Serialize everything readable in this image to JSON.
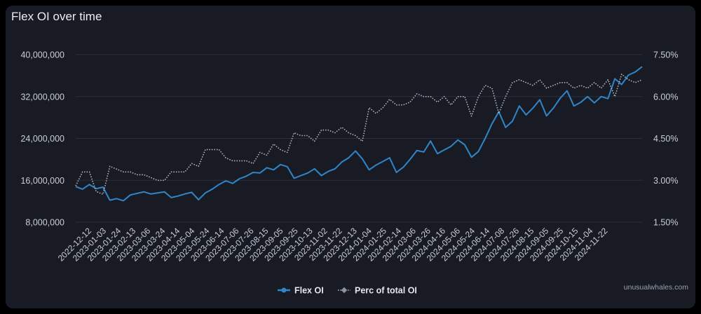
{
  "page": {
    "title": "Flex OI over time",
    "watermark": "unusualwhales.com"
  },
  "colors": {
    "flex": "#2f86c8",
    "perc": "#b3b8c6",
    "grid": "#2b2f3a",
    "background": "#181b24"
  },
  "chart_data": {
    "type": "line",
    "title": "Flex OI over time",
    "y_left": {
      "ylim": [
        8000000,
        40000000
      ],
      "ticks": [
        8000000,
        16000000,
        24000000,
        32000000,
        40000000
      ],
      "tick_labels": [
        "8,000,000",
        "16,000,000",
        "24,000,000",
        "32,000,000",
        "40,000,000"
      ]
    },
    "y_right": {
      "ylim": [
        1.5,
        7.5
      ],
      "ticks": [
        1.5,
        3.0,
        4.5,
        6.0,
        7.5
      ],
      "tick_labels": [
        "1.50%",
        "3.00%",
        "4.50%",
        "6.00%",
        "7.50%"
      ]
    },
    "x_tick_labels": [
      "2022-12-12",
      "2023-01-03",
      "2023-01-24",
      "2023-02-13",
      "2023-03-06",
      "2023-03-24",
      "2023-04-14",
      "2023-05-04",
      "2023-05-24",
      "2023-06-14",
      "2023-07-06",
      "2023-07-26",
      "2023-08-15",
      "2023-09-05",
      "2023-09-25",
      "2023-10-13",
      "2023-11-02",
      "2023-11-22",
      "2023-12-13",
      "2024-01-04",
      "2024-01-25",
      "2024-02-14",
      "2024-03-06",
      "2024-03-26",
      "2024-04-16",
      "2024-05-06",
      "2024-05-24",
      "2024-06-14",
      "2024-07-08",
      "2024-07-26",
      "2024-08-15",
      "2024-09-05",
      "2024-09-25",
      "2024-10-15",
      "2024-11-04",
      "2024-11-22"
    ],
    "legend_position": "bottom-center",
    "series": [
      {
        "name": "Flex OI",
        "axis": "left",
        "style": "solid",
        "values": [
          14800000,
          14300000,
          15200000,
          14400000,
          14700000,
          12200000,
          12500000,
          12100000,
          13200000,
          13500000,
          13800000,
          13400000,
          13600000,
          13800000,
          12700000,
          13000000,
          13400000,
          13700000,
          12300000,
          13600000,
          14300000,
          15200000,
          15900000,
          15400000,
          16300000,
          16800000,
          17500000,
          17400000,
          18400000,
          18000000,
          19000000,
          18600000,
          16400000,
          16900000,
          17400000,
          18200000,
          16900000,
          17700000,
          18200000,
          19500000,
          20300000,
          21600000,
          20100000,
          18000000,
          18900000,
          19600000,
          20300000,
          17500000,
          18500000,
          20000000,
          21700000,
          21400000,
          23500000,
          21100000,
          21800000,
          22500000,
          23700000,
          22800000,
          20400000,
          21500000,
          24000000,
          26800000,
          29100000,
          26100000,
          27300000,
          30200000,
          28500000,
          29800000,
          31400000,
          28300000,
          29800000,
          31700000,
          33100000,
          30200000,
          30900000,
          32000000,
          30800000,
          32000000,
          31600000,
          35400000,
          34300000,
          36100000,
          36700000,
          37700000
        ]
      },
      {
        "name": "Perc of total OI",
        "axis": "right",
        "style": "dotted",
        "values": [
          2.8,
          3.3,
          3.3,
          2.6,
          2.5,
          3.5,
          3.4,
          3.3,
          3.3,
          3.2,
          3.2,
          3.1,
          3.0,
          3.0,
          3.3,
          3.3,
          3.3,
          3.6,
          3.5,
          4.1,
          4.1,
          4.1,
          3.8,
          3.7,
          3.7,
          3.7,
          3.6,
          4.0,
          3.9,
          4.3,
          4.1,
          4.0,
          4.7,
          4.6,
          4.6,
          4.4,
          4.8,
          4.8,
          4.7,
          4.9,
          4.7,
          4.6,
          4.4,
          5.6,
          5.4,
          5.6,
          5.9,
          5.7,
          5.7,
          5.8,
          6.1,
          6.0,
          6.0,
          5.8,
          6.0,
          5.7,
          6.0,
          6.0,
          5.3,
          6.0,
          6.4,
          6.3,
          5.4,
          6.0,
          6.5,
          6.6,
          6.5,
          6.4,
          6.6,
          6.3,
          6.4,
          6.5,
          6.5,
          6.3,
          6.4,
          6.3,
          6.5,
          6.3,
          6.6,
          6.0,
          6.8,
          6.6,
          6.5,
          6.6
        ]
      }
    ]
  }
}
